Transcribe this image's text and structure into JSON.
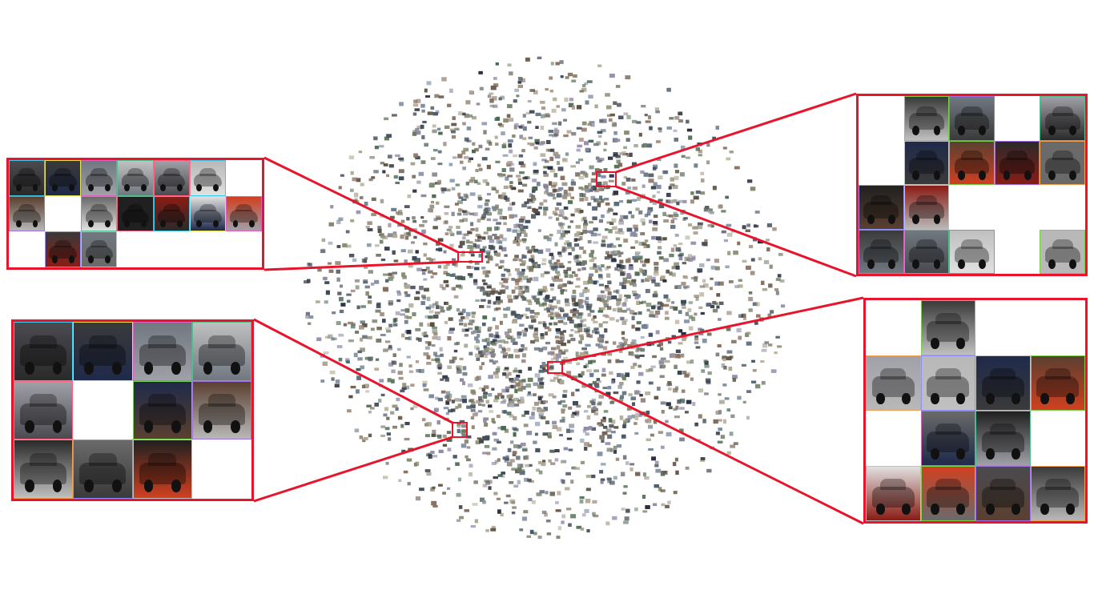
{
  "figure": {
    "description_free": true,
    "accent_color": "#e8142b",
    "thumbnail_border_colors": [
      "#3cc8e8",
      "#7ad04a",
      "#e8e050",
      "#a070e0",
      "#e060c0",
      "#f0a050",
      "#50c090",
      "#9090ff",
      "#ff6080",
      "#c0c0c0"
    ],
    "thumbnail_tones": [
      "#2a2a2a",
      "#8a1c14",
      "#4a4a50",
      "#c0c0c0",
      "#1f2a4a",
      "#6a6a6a",
      "#e0e0e0",
      "#3a3a3a",
      "#a0a0a8",
      "#5a4030",
      "#202020",
      "#d04020",
      "#707880",
      "#b8b8b8"
    ]
  },
  "zoom_panels": [
    {
      "id": "top-left",
      "rows": 3,
      "cols": 7,
      "filled": [
        0,
        1,
        2,
        3,
        4,
        5,
        7,
        9,
        10,
        11,
        12,
        13,
        15,
        16
      ]
    },
    {
      "id": "top-right",
      "rows": 4,
      "cols": 5,
      "filled": [
        1,
        2,
        4,
        6,
        7,
        8,
        9,
        10,
        11,
        15,
        16,
        17,
        19
      ]
    },
    {
      "id": "bottom-left",
      "rows": 3,
      "cols": 4,
      "filled": [
        0,
        1,
        2,
        3,
        4,
        6,
        7,
        8,
        9,
        10
      ]
    },
    {
      "id": "bottom-right",
      "rows": 4,
      "cols": 4,
      "filled": [
        1,
        4,
        5,
        6,
        7,
        9,
        10,
        12,
        13,
        14,
        15
      ]
    }
  ]
}
